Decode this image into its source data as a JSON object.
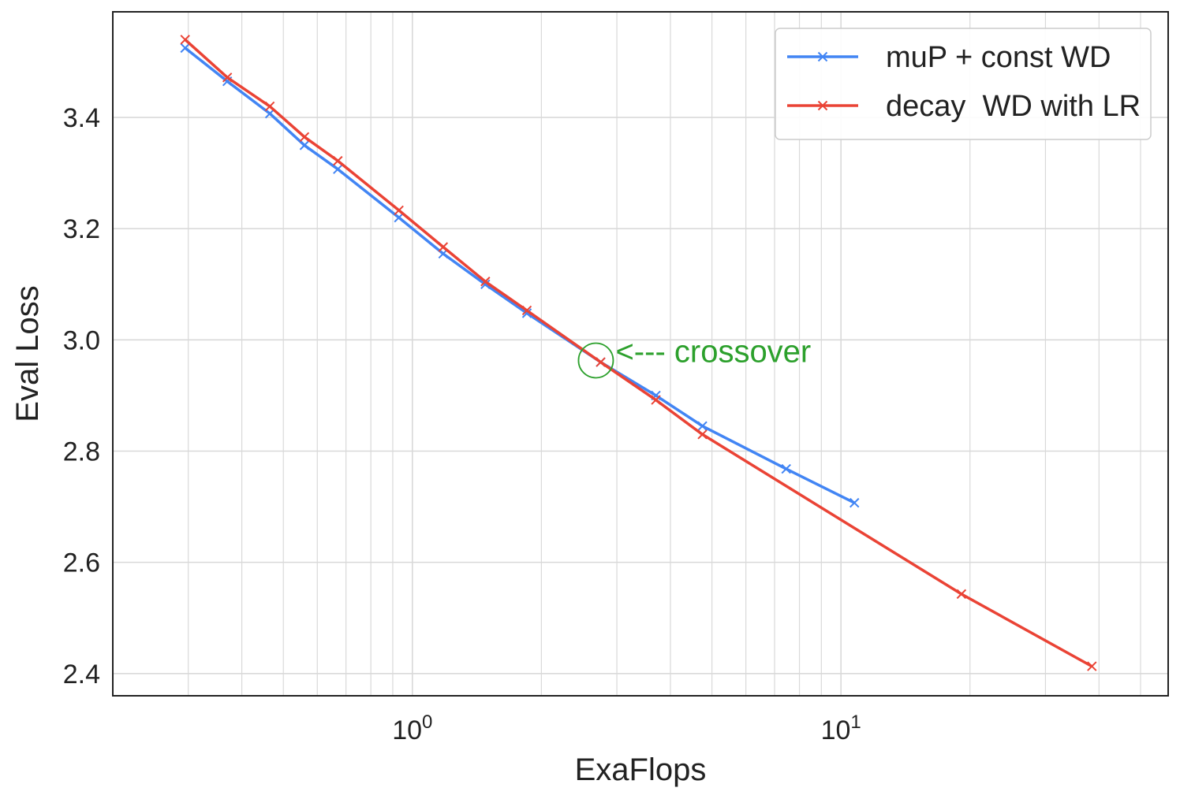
{
  "chart_data": {
    "type": "line",
    "xlabel": "ExaFlops",
    "ylabel": "Eval Loss",
    "xscale": "log",
    "xlim": [
      0.2,
      58
    ],
    "ylim": [
      2.36,
      3.59
    ],
    "grid": true,
    "legend_position": "top-right",
    "y_ticks": [
      "2.4",
      "2.6",
      "2.8",
      "3.0",
      "3.2",
      "3.4"
    ],
    "y_tick_values": [
      2.4,
      2.6,
      2.8,
      3.0,
      3.2,
      3.4
    ],
    "x_major_ticks": [
      {
        "value": 1,
        "base": "10",
        "exp": "0"
      },
      {
        "value": 10,
        "base": "10",
        "exp": "1"
      }
    ],
    "series": [
      {
        "name": "muP + const WD",
        "color": "#4285f4",
        "marker": "x",
        "x": [
          0.295,
          0.37,
          0.465,
          0.56,
          0.67,
          0.93,
          1.18,
          1.48,
          1.85,
          2.75,
          3.7,
          4.75,
          7.45,
          10.75
        ],
        "y": [
          3.525,
          3.465,
          3.407,
          3.35,
          3.307,
          3.22,
          3.155,
          3.1,
          3.048,
          2.96,
          2.9,
          2.845,
          2.768,
          2.707
        ]
      },
      {
        "name": "decay  WD with LR",
        "color": "#ea4335",
        "marker": "x",
        "x": [
          0.295,
          0.37,
          0.465,
          0.56,
          0.67,
          0.93,
          1.18,
          1.48,
          1.85,
          2.75,
          3.7,
          4.75,
          19.1,
          38.5
        ],
        "y": [
          3.54,
          3.472,
          3.42,
          3.365,
          3.322,
          3.233,
          3.167,
          3.105,
          3.053,
          2.96,
          2.892,
          2.83,
          2.543,
          2.413
        ]
      }
    ],
    "annotations": [
      {
        "text": "<--- crossover",
        "x": 2.68,
        "y": 2.963,
        "color": "#2ca02c",
        "marker": "circle"
      }
    ]
  }
}
